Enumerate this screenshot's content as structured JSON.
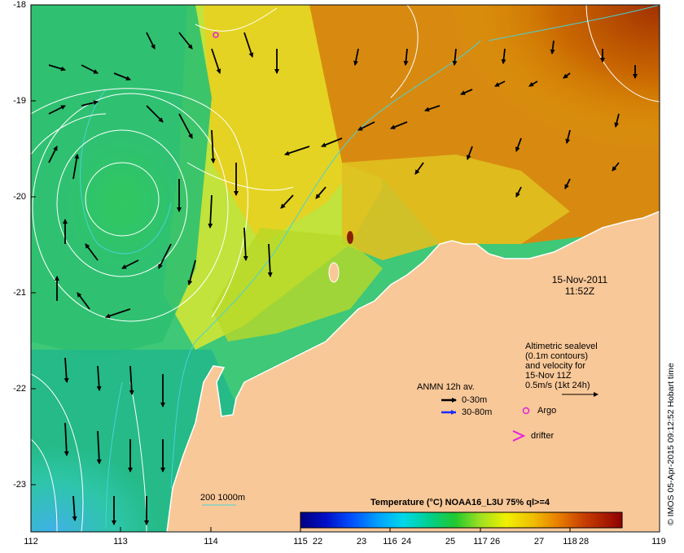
{
  "map": {
    "y_ticks": [
      "-18",
      "-19",
      "-20",
      "-21",
      "-22",
      "-23"
    ],
    "x_ticks": [
      "112",
      "113",
      "114",
      "115",
      "116",
      "117",
      "118",
      "119"
    ],
    "date": "15-Nov-2011",
    "time": "11:52Z",
    "altimetry_lines": [
      "Altimetric sealevel",
      "(0.1m contours)",
      "and velocity for",
      "15-Nov 11Z",
      "0.5m/s (1kt 24h)"
    ],
    "anmn_title": "ANMN 12h av.",
    "anmn_shallow": "0-30m",
    "anmn_deep": "30-80m",
    "argo_label": "Argo",
    "drifter_label": "drifter",
    "isobath_label": "200  1000m",
    "colorbar_title": "Temperature (°C) NOAA16_L3U 75% ql>=4",
    "colorbar_ticks": [
      "22",
      "23",
      "24",
      "25",
      "26",
      "27",
      "28"
    ],
    "credit": "© IMOS 05-Apr-2015 09:12:52 Hobart time",
    "colors": {
      "land": "#f9c898",
      "isobath": "#47d3d8",
      "contour": "#ffffff",
      "argo": "#e020e0",
      "anmn_deep": "#1a2bff",
      "anmn_shallow": "#000000"
    }
  }
}
